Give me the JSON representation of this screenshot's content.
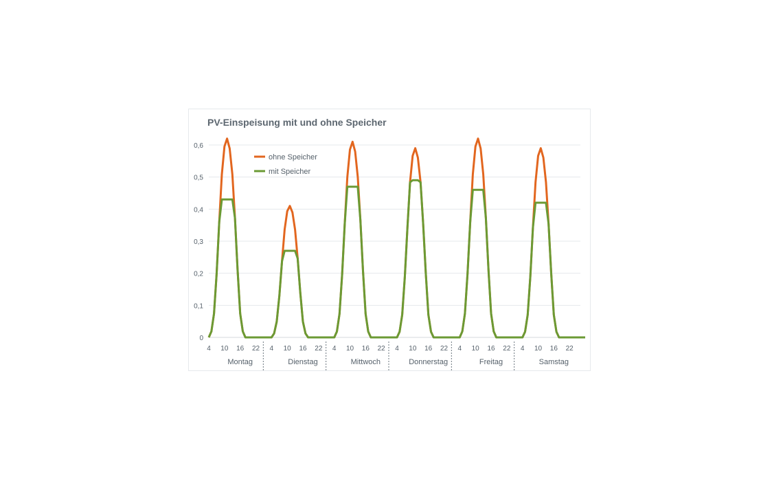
{
  "chart_data": {
    "type": "line",
    "title": "PV-Einspeisung mit und ohne Speicher",
    "xlabel": "",
    "ylabel": "",
    "ylim": [
      0,
      0.6
    ],
    "y_ticks": [
      "0",
      "0,1",
      "0,2",
      "0,3",
      "0,4",
      "0,5",
      "0,6"
    ],
    "x_tick_labels": [
      "4",
      "10",
      "16",
      "22"
    ],
    "days": [
      "Montag",
      "Dienstag",
      "Mittwoch",
      "Donnerstag",
      "Freitag",
      "Samstag"
    ],
    "grid": true,
    "legend_position": "top-left",
    "series": [
      {
        "name": "ohne Speicher",
        "color": "#e2661f",
        "peaks": [
          0.62,
          0.41,
          0.61,
          0.59,
          0.62,
          0.59
        ]
      },
      {
        "name": "mit Speicher",
        "color": "#6b9a34",
        "caps": [
          0.43,
          0.27,
          0.47,
          0.49,
          0.46,
          0.42
        ]
      }
    ],
    "profile": {
      "hours": [
        4,
        5,
        6,
        7,
        8,
        9,
        10,
        11,
        12,
        13,
        14,
        15,
        16,
        17,
        18,
        19,
        20,
        21,
        22
      ],
      "fraction_of_peak": [
        0,
        0.03,
        0.12,
        0.32,
        0.58,
        0.82,
        0.96,
        1.0,
        0.95,
        0.82,
        0.6,
        0.34,
        0.12,
        0.03,
        0,
        0,
        0,
        0,
        0
      ]
    }
  }
}
